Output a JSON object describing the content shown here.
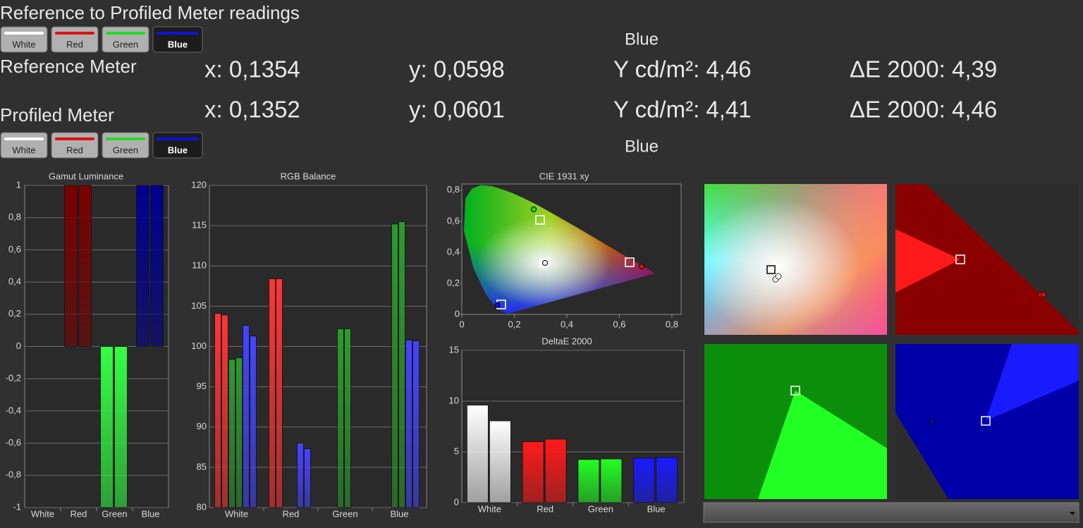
{
  "header": {
    "title": "Reference to Profiled Meter readings"
  },
  "reference": {
    "buttons": [
      "White",
      "Red",
      "Green",
      "Blue"
    ],
    "button_colors": [
      "#ffffff",
      "#e01010",
      "#22dd22",
      "#1010e0"
    ],
    "selected": "Blue",
    "label": "Reference Meter",
    "readings": [
      "x: 0,1354",
      "y: 0,0598",
      "Y cd/m²: 4,46",
      "ΔE 2000: 4,39"
    ]
  },
  "profiled": {
    "buttons": [
      "White",
      "Red",
      "Green",
      "Blue"
    ],
    "button_colors": [
      "#ffffff",
      "#e01010",
      "#22dd22",
      "#1010e0"
    ],
    "selected": "Blue",
    "label": "Profiled Meter",
    "readings": [
      "x: 0,1352",
      "y: 0,0601",
      "Y cd/m²: 4,41",
      "ΔE 2000: 4,46"
    ]
  },
  "chart_data": [
    {
      "type": "bar",
      "title": "Gamut Luminance",
      "categories": [
        "White",
        "Red",
        "Green",
        "Blue"
      ],
      "colors": [
        "#dddddd",
        "#7a0000",
        "#33ff44",
        "#000090"
      ],
      "series": [
        {
          "values": [
            0,
            1,
            -1,
            1
          ]
        },
        {
          "values": [
            0,
            1,
            -1,
            1
          ]
        }
      ],
      "ylim": [
        -1,
        1
      ],
      "yticks": [
        1,
        {
          "value": 0.8,
          "label": "0,8"
        },
        {
          "value": 0.6,
          "label": "0,6"
        },
        {
          "value": 0.4,
          "label": "0,4"
        },
        {
          "value": 0.2,
          "label": "0,2"
        },
        0,
        {
          "value": -0.2,
          "label": "-0,2"
        },
        {
          "value": -0.4,
          "label": "-0,4"
        },
        {
          "value": -0.6,
          "label": "-0,6"
        },
        {
          "value": -0.8,
          "label": "-0,8"
        },
        -1
      ],
      "grid": true
    },
    {
      "type": "bar",
      "title": "RGB Balance",
      "categories": [
        "White",
        "Red",
        "Green",
        "Blue"
      ],
      "series": [
        {
          "color": "#ff3535",
          "values": [
            104.1,
            108.4,
            null,
            null
          ]
        },
        {
          "color": "#ff3535",
          "values": [
            103.9,
            108.4,
            null,
            null
          ]
        },
        {
          "color": "#2e9a2e",
          "values": [
            98.4,
            null,
            102.2,
            115.2
          ]
        },
        {
          "color": "#2e9a2e",
          "values": [
            98.6,
            null,
            102.2,
            115.5
          ]
        },
        {
          "color": "#4545ff",
          "values": [
            102.6,
            88.0,
            null,
            100.8
          ]
        },
        {
          "color": "#4545ff",
          "values": [
            101.3,
            87.3,
            null,
            100.7
          ]
        }
      ],
      "ylim": [
        80,
        120
      ],
      "yticks": [
        80,
        85,
        90,
        95,
        100,
        105,
        110,
        115,
        120
      ],
      "grid": true
    },
    {
      "type": "scatter",
      "title": "CIE 1931 xy",
      "series": [
        {
          "marker": "square",
          "x": [
            0.639,
            0.298,
            0.15,
            0.314
          ],
          "y": [
            0.336,
            0.609,
            0.064,
            0.332
          ]
        },
        {
          "marker": "circle",
          "colors": [
            "#e01010",
            "#22dd22",
            "#1010e0",
            "#ffffff"
          ],
          "x": [
            0.685,
            0.274,
            0.1352,
            0.317
          ],
          "y": [
            0.309,
            0.677,
            0.0601,
            0.332
          ]
        }
      ],
      "xlim": [
        0,
        0.835
      ],
      "ylim": [
        0,
        0.84
      ],
      "xticks": [
        0,
        {
          "value": 0.2,
          "label": "0,2"
        },
        {
          "value": 0.4,
          "label": "0,4"
        },
        {
          "value": 0.6,
          "label": "0,6"
        },
        {
          "value": 0.8,
          "label": "0,8"
        }
      ],
      "yticks": [
        0,
        {
          "value": 0.2,
          "label": "0,2"
        },
        {
          "value": 0.4,
          "label": "0,4"
        },
        {
          "value": 0.6,
          "label": "0,6"
        },
        {
          "value": 0.8,
          "label": "0,8"
        }
      ],
      "grid": false
    },
    {
      "type": "bar",
      "title": "DeltaE 2000",
      "categories": [
        "White",
        "Red",
        "Green",
        "Blue"
      ],
      "colors": [
        "#ffffff",
        "#ff1a1a",
        "#22ff22",
        "#1a1aff"
      ],
      "series": [
        {
          "values": [
            9.6,
            6.0,
            4.25,
            4.39
          ]
        },
        {
          "values": [
            8.05,
            6.25,
            4.3,
            4.46
          ]
        }
      ],
      "ylim": [
        0,
        15
      ],
      "yticks": [
        0,
        5,
        10,
        15
      ],
      "grid": true
    }
  ]
}
